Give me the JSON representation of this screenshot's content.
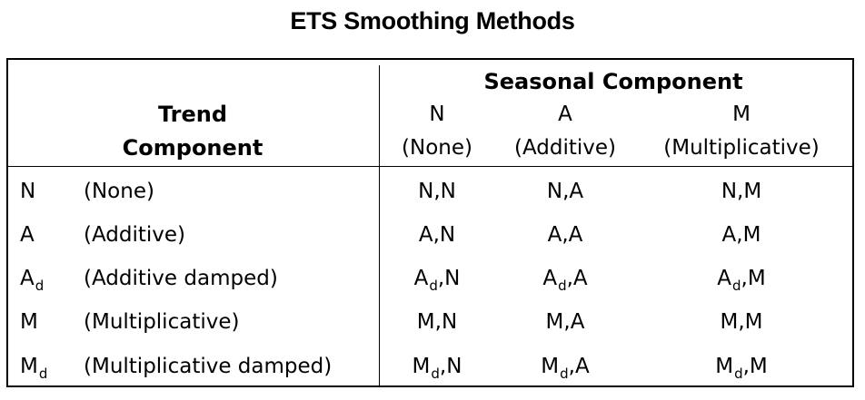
{
  "title": "ETS Smoothing Methods",
  "header": {
    "seasonal_title": "Seasonal Component",
    "trend_title_line1": "Trend",
    "trend_title_line2": "Component",
    "seasonal_columns": [
      {
        "code": "N",
        "label": "(None)"
      },
      {
        "code": "A",
        "label": "(Additive)"
      },
      {
        "code": "M",
        "label": "(Multiplicative)"
      }
    ]
  },
  "rows": [
    {
      "code": "N",
      "code_sub": "",
      "label": "(None)",
      "cells": [
        {
          "t": "N",
          "s": "",
          "v": "N"
        },
        {
          "t": "N",
          "s": "",
          "v": "A"
        },
        {
          "t": "N",
          "s": "",
          "v": "M"
        }
      ]
    },
    {
      "code": "A",
      "code_sub": "",
      "label": "(Additive)",
      "cells": [
        {
          "t": "A",
          "s": "",
          "v": "N"
        },
        {
          "t": "A",
          "s": "",
          "v": "A"
        },
        {
          "t": "A",
          "s": "",
          "v": "M"
        }
      ]
    },
    {
      "code": "A",
      "code_sub": "d",
      "label": "(Additive damped)",
      "cells": [
        {
          "t": "A",
          "s": "d",
          "v": "N"
        },
        {
          "t": "A",
          "s": "d",
          "v": "A"
        },
        {
          "t": "A",
          "s": "d",
          "v": "M"
        }
      ]
    },
    {
      "code": "M",
      "code_sub": "",
      "label": "(Multiplicative)",
      "cells": [
        {
          "t": "M",
          "s": "",
          "v": "N"
        },
        {
          "t": "M",
          "s": "",
          "v": "A"
        },
        {
          "t": "M",
          "s": "",
          "v": "M"
        }
      ]
    },
    {
      "code": "M",
      "code_sub": "d",
      "label": "(Multiplicative damped)",
      "cells": [
        {
          "t": "M",
          "s": "d",
          "v": "N"
        },
        {
          "t": "M",
          "s": "d",
          "v": "A"
        },
        {
          "t": "M",
          "s": "d",
          "v": "M"
        }
      ]
    }
  ]
}
